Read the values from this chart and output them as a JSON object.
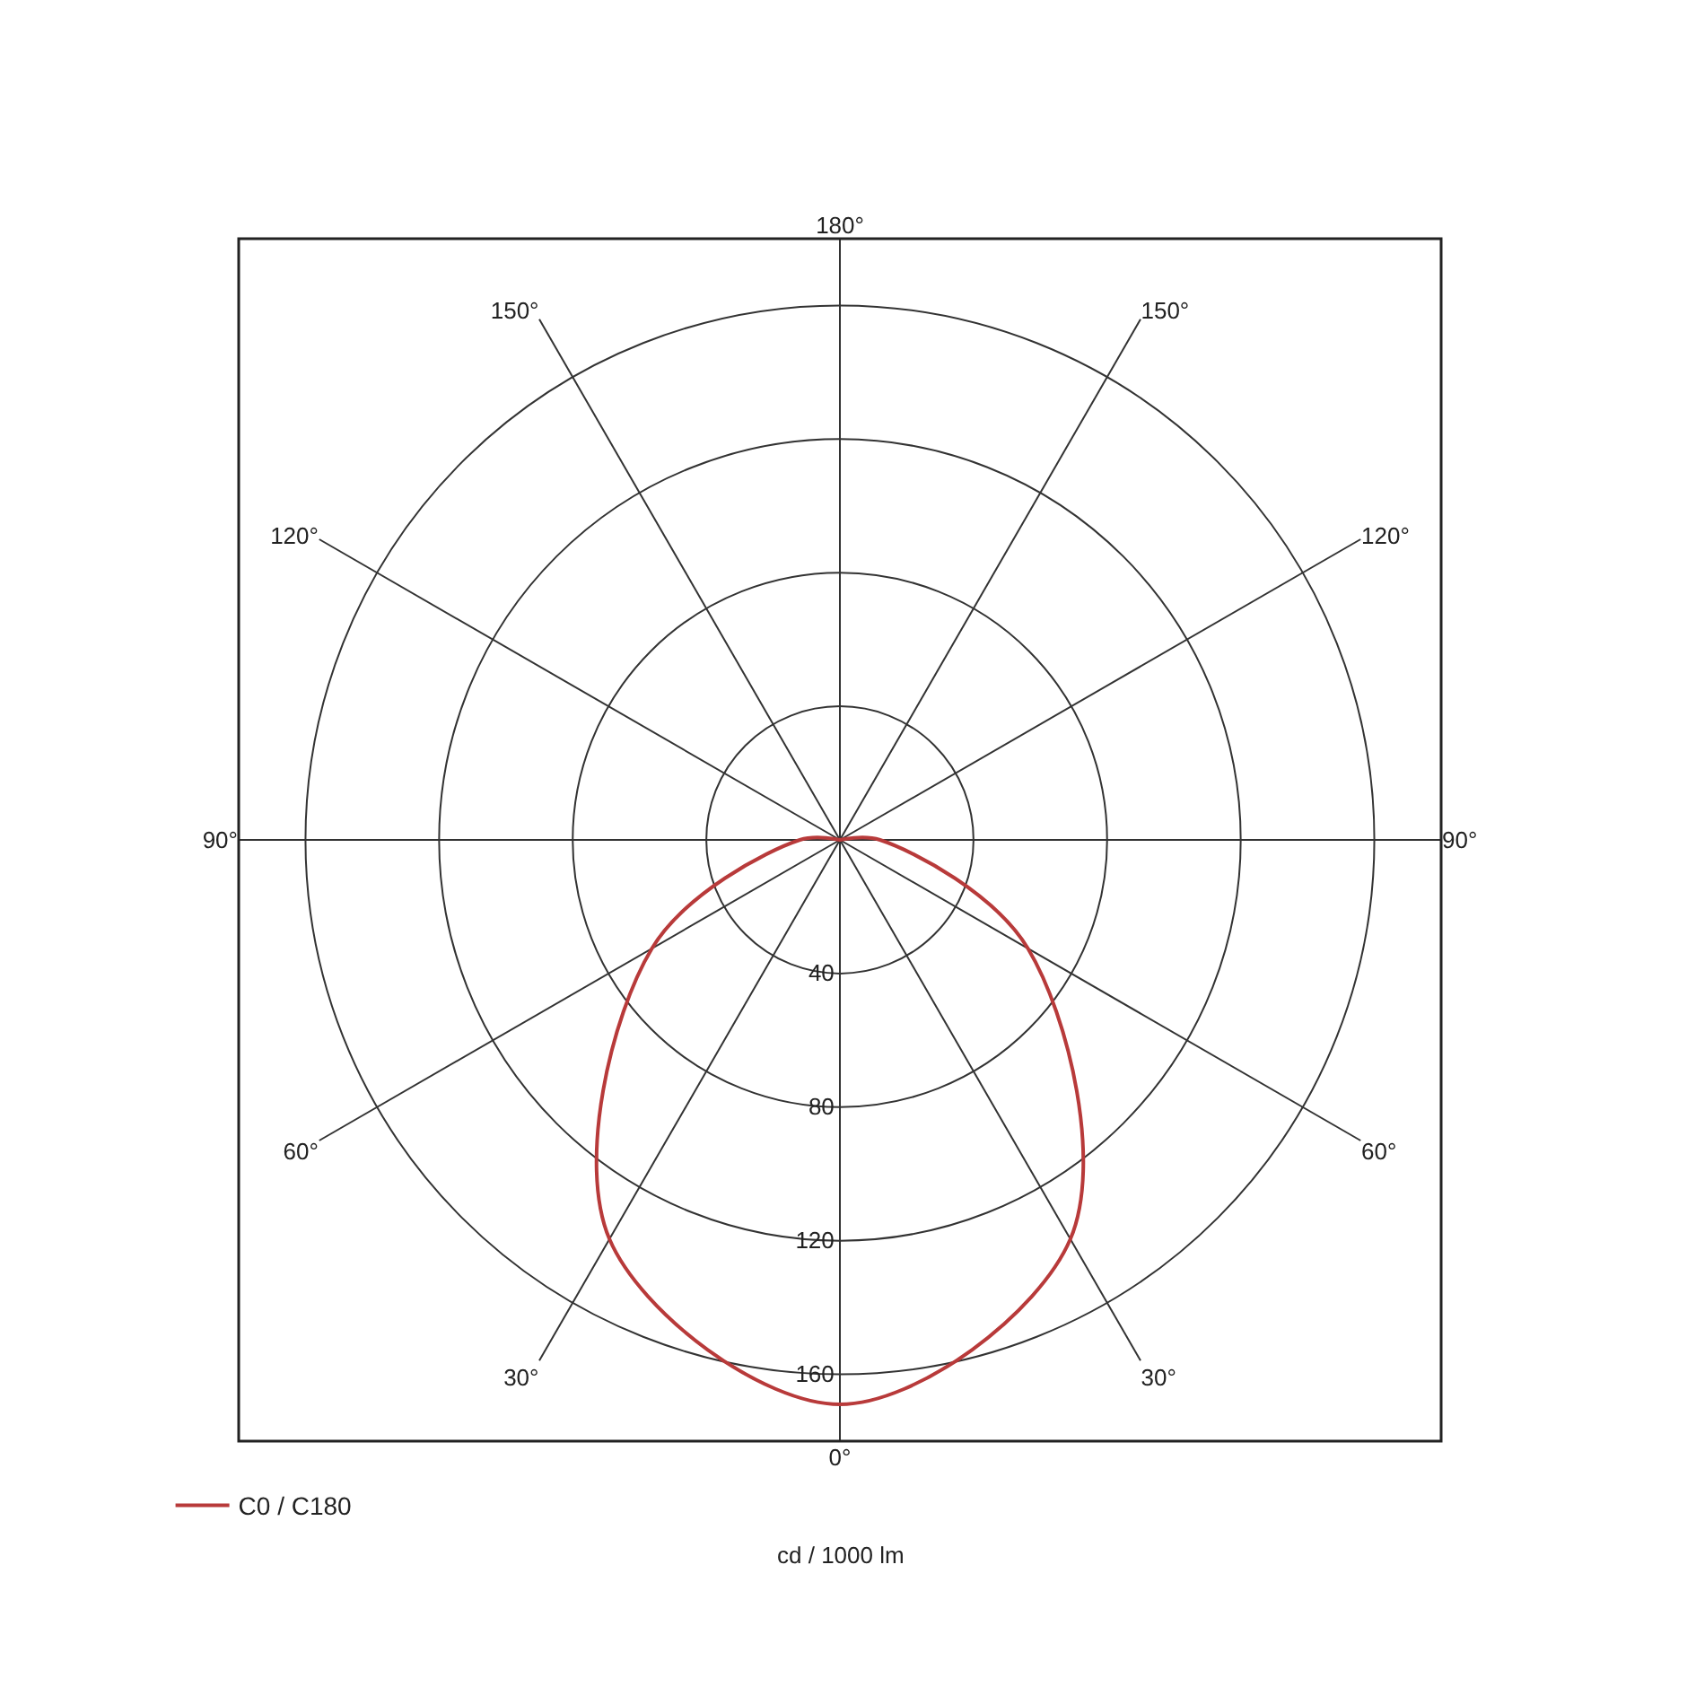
{
  "chart_data": {
    "type": "radar",
    "categories": [
      "180°",
      "150°",
      "120°",
      "90°",
      "60°",
      "30°",
      "0°",
      "30°",
      "60°",
      "90°",
      "120°",
      "150°"
    ],
    "series": [
      {
        "name": "C0 / C180",
        "color": "#b83a3a",
        "values": [
          0,
          0,
          0,
          12,
          65,
          138,
          169,
          138,
          65,
          12,
          0,
          0
        ]
      }
    ],
    "ylim": [
      0,
      180
    ],
    "yticks": [
      40,
      80,
      120,
      160
    ],
    "ylabel": "cd / 1000 lm",
    "grid": true,
    "legend": "bottom left",
    "marker": "none",
    "line_style": "solid"
  }
}
